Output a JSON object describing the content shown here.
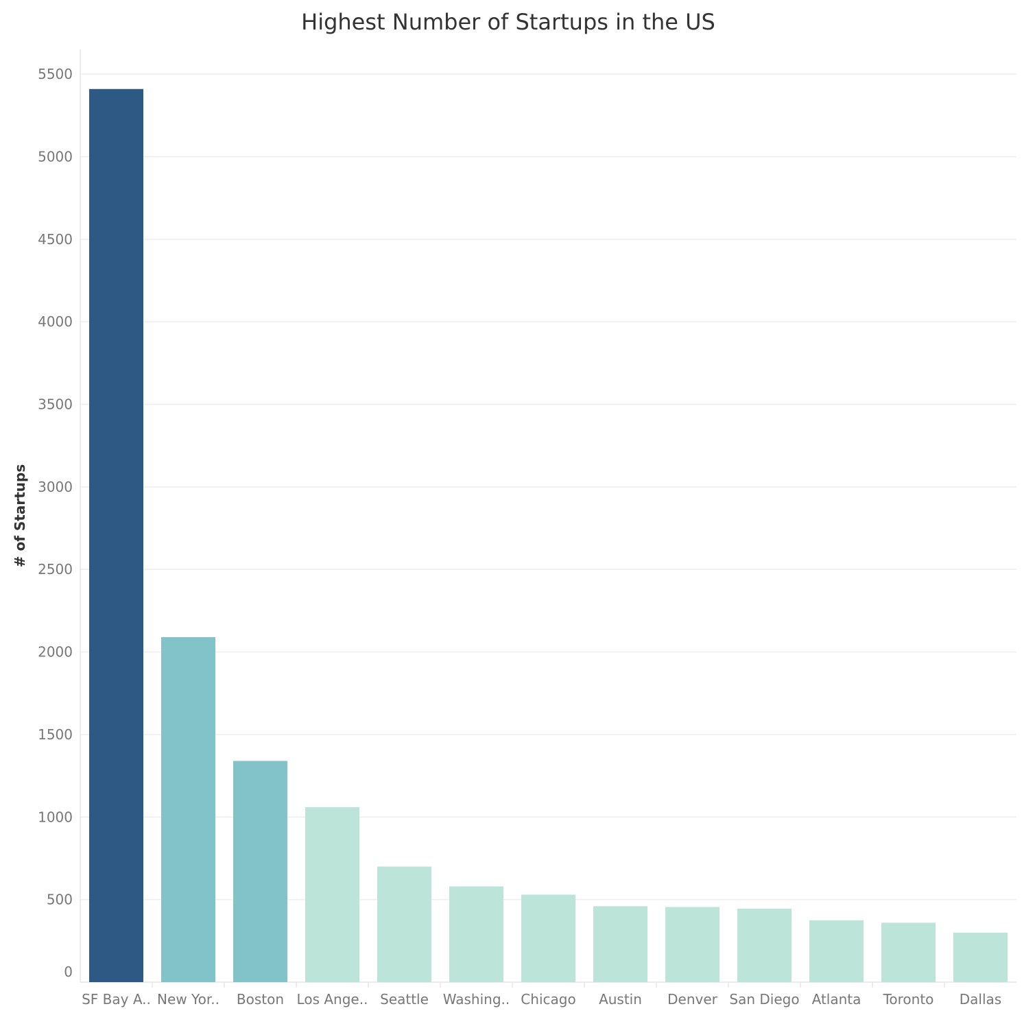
{
  "chart_data": {
    "type": "bar",
    "title": "Highest Number of Startups in the US",
    "xlabel": "",
    "ylabel": "# of Startups",
    "ylim": [
      0,
      5650
    ],
    "yticks": [
      0,
      500,
      1000,
      1500,
      2000,
      2500,
      3000,
      3500,
      4000,
      4500,
      5000,
      5500
    ],
    "grid": true,
    "categories": [
      "SF Bay A..",
      "New Yor..",
      "Boston",
      "Los Ange..",
      "Seattle",
      "Washing..",
      "Chicago",
      "Austin",
      "Denver",
      "San Diego",
      "Atlanta",
      "Toronto",
      "Dallas"
    ],
    "values": [
      5410,
      2090,
      1340,
      1060,
      700,
      580,
      530,
      460,
      455,
      445,
      375,
      360,
      300
    ],
    "bar_colors": [
      "#2e5984",
      "#82c3c9",
      "#82c3c9",
      "#bde4d9",
      "#bde4d9",
      "#bde4d9",
      "#bde4d9",
      "#bde4d9",
      "#bde4d9",
      "#bde4d9",
      "#bde4d9",
      "#bde4d9",
      "#bde4d9"
    ],
    "colors": {
      "gridline": "#eeeeee",
      "axis": "#e6e6e6",
      "tick_text": "#777777",
      "title_text": "#333333"
    }
  }
}
